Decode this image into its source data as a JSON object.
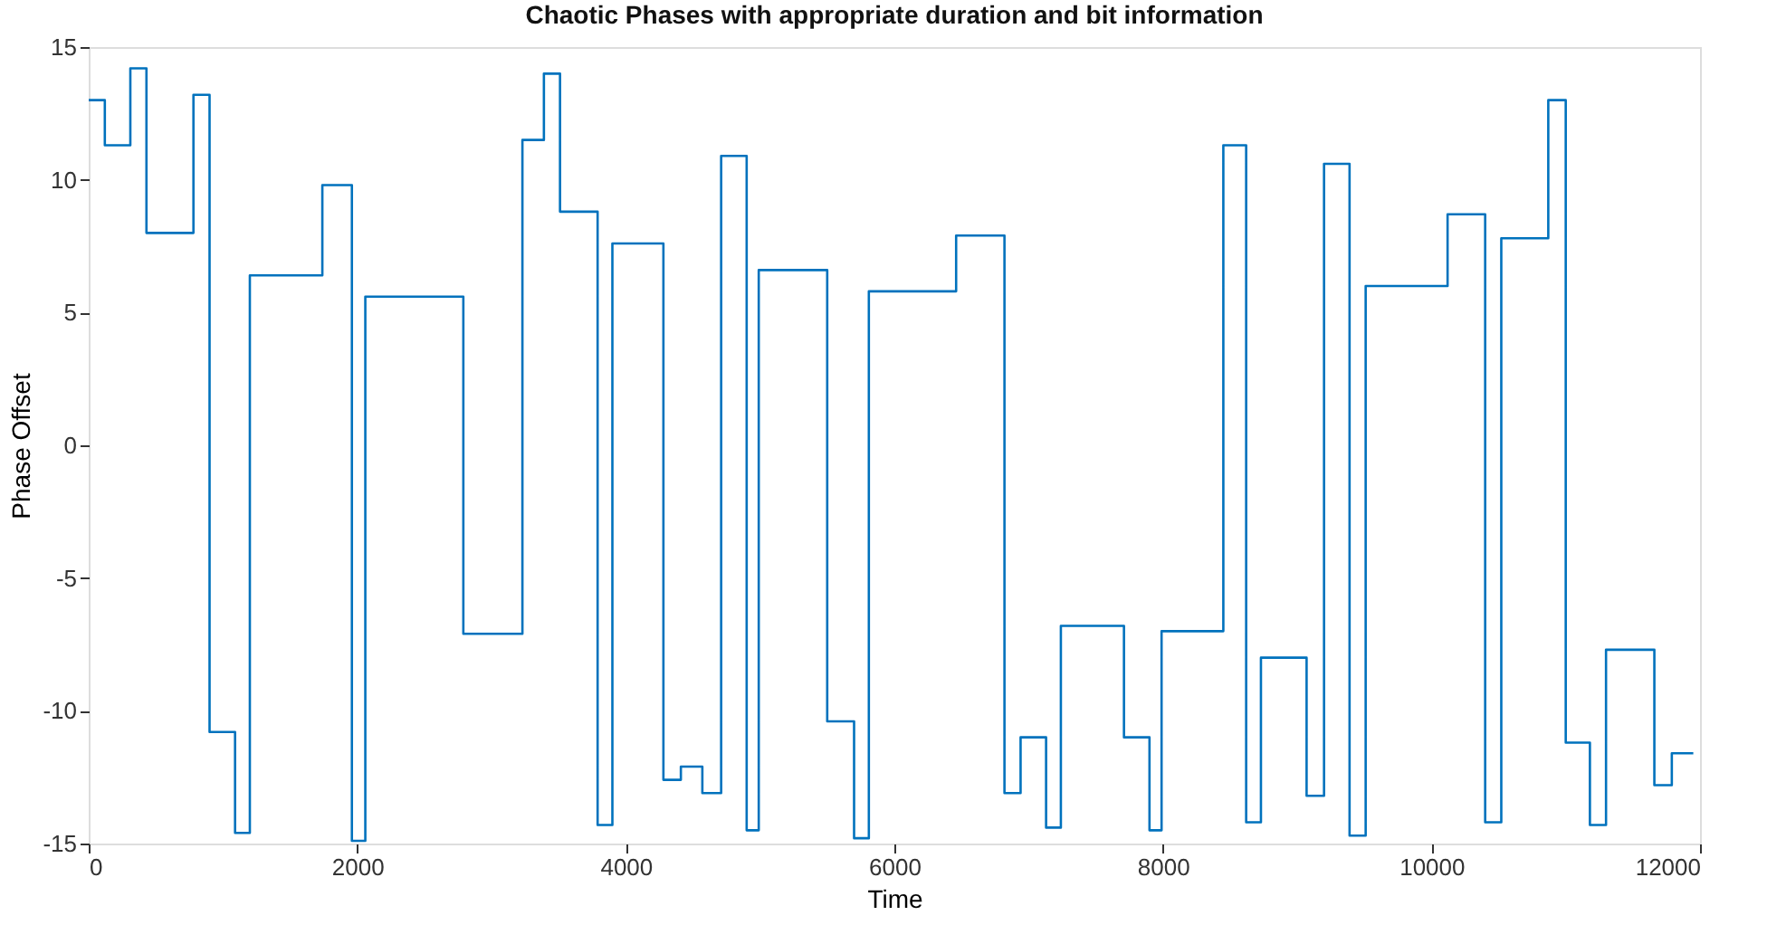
{
  "chart_data": {
    "type": "step",
    "title": "Chaotic Phases with appropriate duration and bit information",
    "xlabel": "Time",
    "ylabel": "Phase Offset",
    "xlim": [
      0,
      12000
    ],
    "xticks": [
      0,
      2000,
      4000,
      6000,
      8000,
      10000,
      12000
    ],
    "ylim": [
      -15,
      15
    ],
    "yticks": [
      -15,
      -10,
      -5,
      0,
      5,
      10,
      15
    ],
    "grid": false,
    "series": [
      {
        "color": "#0072bd",
        "line_style": "solid",
        "x": [
          0,
          120,
          310,
          430,
          780,
          900,
          1090,
          1200,
          1740,
          1960,
          2060,
          2790,
          3230,
          3390,
          3510,
          3790,
          3900,
          4280,
          4410,
          4570,
          4710,
          4900,
          4990,
          5500,
          5700,
          5810,
          6460,
          6820,
          6940,
          7130,
          7240,
          7710,
          7900,
          7990,
          8450,
          8620,
          8730,
          9070,
          9200,
          9390,
          9510,
          10120,
          10400,
          10520,
          10870,
          11000,
          11180,
          11300,
          11660,
          11790,
          11950
        ],
        "values": [
          13.0,
          11.3,
          14.2,
          8.0,
          13.2,
          -10.8,
          -14.6,
          6.4,
          9.8,
          -14.9,
          5.6,
          -7.1,
          11.5,
          14.0,
          8.8,
          -14.3,
          7.6,
          -12.6,
          -12.1,
          -13.1,
          10.9,
          -14.5,
          6.6,
          -10.4,
          -14.8,
          5.8,
          7.9,
          -13.1,
          -11.0,
          -14.4,
          -6.8,
          -11.0,
          -14.5,
          -7.0,
          11.3,
          -14.2,
          -8.0,
          -13.2,
          10.6,
          -14.7,
          6.0,
          8.7,
          -14.2,
          7.8,
          13.0,
          -11.2,
          -14.3,
          -7.7,
          -12.8,
          -11.6,
          -11.6
        ]
      }
    ]
  }
}
